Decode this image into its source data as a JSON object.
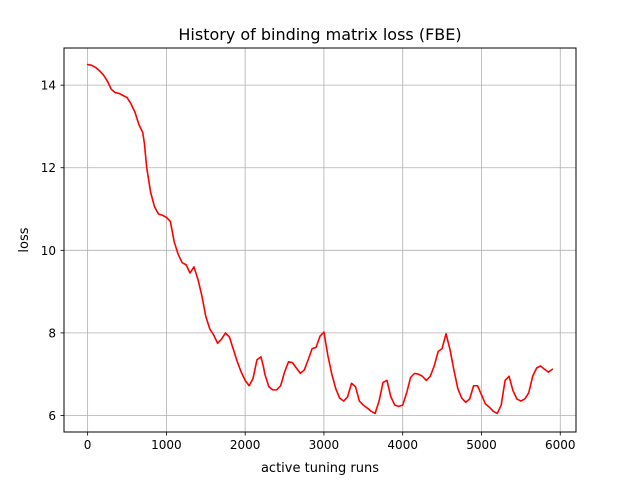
{
  "chart_data": {
    "type": "line",
    "title": "History of binding matrix loss (FBE)",
    "xlabel": "active tuning runs",
    "ylabel": "loss",
    "xlim": [
      -300,
      6200
    ],
    "ylim": [
      5.6,
      14.9
    ],
    "xticks": [
      0,
      1000,
      2000,
      3000,
      4000,
      5000,
      6000
    ],
    "yticks": [
      6,
      8,
      10,
      12,
      14
    ],
    "grid": true,
    "series": [
      {
        "color": "#ff0000",
        "x": [
          0,
          50,
          100,
          150,
          200,
          250,
          300,
          350,
          400,
          450,
          500,
          550,
          600,
          650,
          700,
          720,
          750,
          800,
          850,
          900,
          950,
          1000,
          1050,
          1100,
          1150,
          1200,
          1250,
          1300,
          1350,
          1400,
          1450,
          1500,
          1550,
          1600,
          1650,
          1700,
          1750,
          1800,
          1850,
          1900,
          1950,
          2000,
          2050,
          2100,
          2150,
          2200,
          2230,
          2250,
          2300,
          2350,
          2400,
          2450,
          2500,
          2550,
          2600,
          2650,
          2700,
          2750,
          2800,
          2850,
          2900,
          2950,
          3000,
          3050,
          3100,
          3150,
          3200,
          3250,
          3300,
          3350,
          3400,
          3450,
          3500,
          3550,
          3600,
          3650,
          3700,
          3750,
          3800,
          3850,
          3900,
          3950,
          4000,
          4050,
          4100,
          4150,
          4200,
          4250,
          4300,
          4350,
          4400,
          4450,
          4500,
          4550,
          4600,
          4650,
          4700,
          4750,
          4800,
          4850,
          4900,
          4950,
          5000,
          5050,
          5100,
          5150,
          5200,
          5250,
          5300,
          5350,
          5400,
          5450,
          5500,
          5550,
          5600,
          5650,
          5700,
          5750,
          5800,
          5850,
          5900
        ],
        "y": [
          14.5,
          14.48,
          14.43,
          14.35,
          14.25,
          14.1,
          13.9,
          13.82,
          13.8,
          13.75,
          13.7,
          13.55,
          13.35,
          13.05,
          12.85,
          12.6,
          12.0,
          11.4,
          11.05,
          10.88,
          10.85,
          10.8,
          10.7,
          10.2,
          9.9,
          9.7,
          9.65,
          9.45,
          9.6,
          9.3,
          8.9,
          8.4,
          8.1,
          7.95,
          7.75,
          7.85,
          8.0,
          7.9,
          7.6,
          7.3,
          7.05,
          6.85,
          6.72,
          6.9,
          7.35,
          7.42,
          7.2,
          7.0,
          6.7,
          6.62,
          6.62,
          6.72,
          7.05,
          7.3,
          7.28,
          7.15,
          7.02,
          7.1,
          7.35,
          7.62,
          7.65,
          7.92,
          8.02,
          7.45,
          7.0,
          6.65,
          6.42,
          6.35,
          6.45,
          6.78,
          6.7,
          6.35,
          6.25,
          6.18,
          6.1,
          6.05,
          6.35,
          6.8,
          6.85,
          6.45,
          6.25,
          6.22,
          6.25,
          6.55,
          6.92,
          7.02,
          7.0,
          6.95,
          6.85,
          6.95,
          7.2,
          7.55,
          7.62,
          7.98,
          7.6,
          7.1,
          6.65,
          6.42,
          6.32,
          6.4,
          6.72,
          6.72,
          6.5,
          6.28,
          6.2,
          6.1,
          6.05,
          6.25,
          6.85,
          6.95,
          6.6,
          6.4,
          6.35,
          6.4,
          6.55,
          6.95,
          7.15,
          7.2,
          7.12,
          7.05,
          7.12
        ]
      }
    ]
  }
}
